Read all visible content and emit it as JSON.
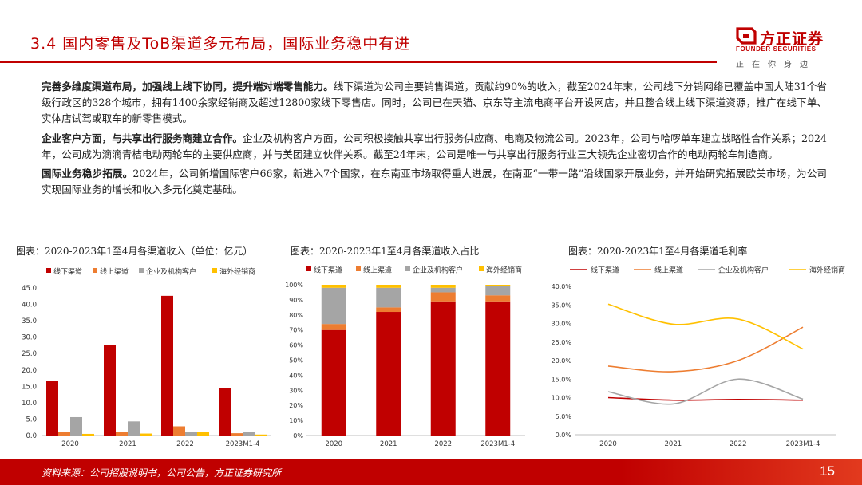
{
  "header": {
    "title": "3.4 国内零售及ToB渠道多元布局，国际业务稳中有进"
  },
  "logo": {
    "name": "方正证券",
    "english": "FOUNDER SECURITIES",
    "slogan": "正在你身边",
    "brand_color": "#c00000"
  },
  "paragraphs": [
    {
      "lead": "完善多维度渠道布局，加强线上线下协同，提升端对端零售能力。",
      "text": "线下渠道为公司主要销售渠道，贡献约90%的收入，截至2024年末，公司线下分销网络已覆盖中国大陆31个省级行政区的328个城市，拥有1400余家经销商及超过12800家线下零售店。同时，公司已在天猫、京东等主流电商平台开设网店，并且整合线上线下渠道资源，推广在线下单、实体店试驾或取车的新零售模式。"
    },
    {
      "lead": "企业客户方面，与共享出行服务商建立合作。",
      "text": "企业及机构客户方面，公司积极接触共享出行服务供应商、电商及物流公司。2023年，公司与哈啰单车建立战略性合作关系；2024年，公司成为滴滴青桔电动两轮车的主要供应商，并与美团建立伙伴关系。截至24年末，公司是唯一与共享出行服务行业三大领先企业密切合作的电动两轮车制造商。"
    },
    {
      "lead": "国际业务稳步拓展。",
      "text": "2024年，公司新增国际客户66家，新进入7个国家，在东南亚市场取得重大进展，在南亚“一带一路”沿线国家开展业务，并开始研究拓展欧美市场，为公司实现国际业务的增长和收入多元化奠定基础。"
    }
  ],
  "colors": {
    "offline": "#c00000",
    "online": "#ed7d31",
    "enterprise": "#a5a5a5",
    "overseas": "#ffc000"
  },
  "chart_data": [
    {
      "type": "bar",
      "title": "图表：2020-2023年1至4月各渠道收入（单位：亿元）",
      "categories": [
        "2020",
        "2021",
        "2022",
        "2023M1-4"
      ],
      "series": [
        {
          "name": "线下渠道",
          "values": [
            16.6,
            27.7,
            42.6,
            14.5
          ]
        },
        {
          "name": "线上渠道",
          "values": [
            1.0,
            1.2,
            2.8,
            0.7
          ]
        },
        {
          "name": "企业及机构客户",
          "values": [
            5.6,
            4.3,
            1.0,
            1.0
          ]
        },
        {
          "name": "海外经销商",
          "values": [
            0.5,
            0.6,
            1.2,
            0.3
          ]
        }
      ],
      "ylim": [
        0,
        45.0
      ],
      "yticks": [
        "0.0",
        "5.0",
        "10.0",
        "15.0",
        "20.0",
        "25.0",
        "30.0",
        "35.0",
        "40.0",
        "45.0"
      ],
      "legend": "top"
    },
    {
      "type": "bar",
      "stacked": true,
      "title": "图表：2020-2023年1至4月各渠道收入占比",
      "categories": [
        "2020",
        "2021",
        "2022",
        "2023M1-4"
      ],
      "series": [
        {
          "name": "线下渠道",
          "values": [
            70,
            82,
            89,
            89
          ]
        },
        {
          "name": "线上渠道",
          "values": [
            4,
            3,
            6,
            4
          ]
        },
        {
          "name": "企业及机构客户",
          "values": [
            24,
            13,
            3,
            6
          ]
        },
        {
          "name": "海外经销商",
          "values": [
            2,
            2,
            2,
            1
          ]
        }
      ],
      "ylim": [
        0,
        100
      ],
      "yticks": [
        "0%",
        "10%",
        "20%",
        "30%",
        "40%",
        "50%",
        "60%",
        "70%",
        "80%",
        "90%",
        "100%"
      ],
      "legend": "top"
    },
    {
      "type": "line",
      "title": "图表：2020-2023年1至4月各渠道毛利率",
      "categories": [
        "2020",
        "2021",
        "2022",
        "2023M1-4"
      ],
      "series": [
        {
          "name": "线下渠道",
          "values": [
            10.0,
            9.3,
            9.5,
            9.3
          ]
        },
        {
          "name": "线上渠道",
          "values": [
            18.5,
            17.0,
            20.0,
            29.0
          ]
        },
        {
          "name": "企业及机构客户",
          "values": [
            11.6,
            8.3,
            15.0,
            9.6
          ]
        },
        {
          "name": "海外经销商",
          "values": [
            35.2,
            29.8,
            31.2,
            23.1
          ]
        }
      ],
      "ylim": [
        0,
        40
      ],
      "yticks": [
        "0.0%",
        "5.0%",
        "10.0%",
        "15.0%",
        "20.0%",
        "25.0%",
        "30.0%",
        "35.0%",
        "40.0%"
      ],
      "legend": "top"
    }
  ],
  "footer": {
    "source": "资料来源：公司招股说明书，公司公告，方正证券研究所",
    "page": "15"
  }
}
